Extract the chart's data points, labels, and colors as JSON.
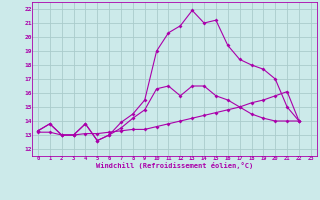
{
  "xlabel": "Windchill (Refroidissement éolien,°C)",
  "bg_color": "#cceaea",
  "grid_color": "#aacccc",
  "line_color": "#aa00aa",
  "x_ticks": [
    0,
    1,
    2,
    3,
    4,
    5,
    6,
    7,
    8,
    9,
    10,
    11,
    12,
    13,
    14,
    15,
    16,
    17,
    18,
    19,
    20,
    21,
    22,
    23
  ],
  "y_ticks": [
    12,
    13,
    14,
    15,
    16,
    17,
    18,
    19,
    20,
    21,
    22
  ],
  "xlim": [
    -0.5,
    23.5
  ],
  "ylim": [
    11.5,
    22.5
  ],
  "line1_x": [
    0,
    1,
    2,
    3,
    4,
    5,
    6,
    7,
    8,
    9,
    10,
    11,
    12,
    13,
    14,
    15,
    16,
    17,
    18,
    19,
    20,
    21,
    22
  ],
  "line1_y": [
    13.3,
    13.8,
    13.0,
    13.0,
    13.8,
    12.6,
    13.0,
    13.9,
    14.5,
    15.5,
    19.0,
    20.3,
    20.8,
    21.9,
    21.0,
    21.2,
    19.4,
    18.4,
    18.0,
    17.7,
    17.0,
    15.0,
    14.0
  ],
  "line2_x": [
    0,
    1,
    2,
    3,
    4,
    5,
    6,
    7,
    8,
    9,
    10,
    11,
    12,
    13,
    14,
    15,
    16,
    17,
    18,
    19,
    20,
    21,
    22
  ],
  "line2_y": [
    13.3,
    13.8,
    13.0,
    13.0,
    13.8,
    12.6,
    13.0,
    13.5,
    14.2,
    14.8,
    16.3,
    16.5,
    15.8,
    16.5,
    16.5,
    15.8,
    15.5,
    15.0,
    14.5,
    14.2,
    14.0,
    14.0,
    14.0
  ],
  "line3_x": [
    0,
    1,
    2,
    3,
    4,
    5,
    6,
    7,
    8,
    9,
    10,
    11,
    12,
    13,
    14,
    15,
    16,
    17,
    18,
    19,
    20,
    21,
    22
  ],
  "line3_y": [
    13.2,
    13.2,
    13.0,
    13.0,
    13.1,
    13.1,
    13.2,
    13.3,
    13.4,
    13.4,
    13.6,
    13.8,
    14.0,
    14.2,
    14.4,
    14.6,
    14.8,
    15.0,
    15.3,
    15.5,
    15.8,
    16.1,
    14.0
  ]
}
